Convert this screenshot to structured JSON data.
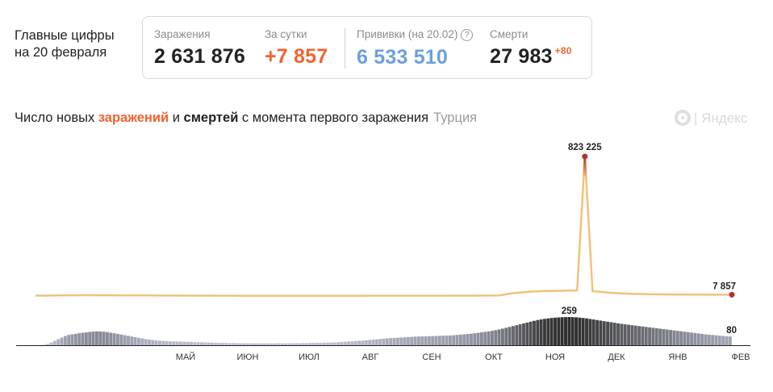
{
  "headline": {
    "line1": "Главные цифры",
    "line2": "на 20 февраля"
  },
  "stats": {
    "infections": {
      "label": "Заражения",
      "value": "2 631 876"
    },
    "daily": {
      "label": "За сутки",
      "value": "+7 857",
      "color": "#f2622e"
    },
    "vaccinations": {
      "label": "Прививки (на 20.02)",
      "value": "6 533 510",
      "color": "#6aa0de"
    },
    "deaths": {
      "label": "Смерти",
      "value": "27 983",
      "delta": "+80"
    }
  },
  "title": {
    "part1": "Число новых ",
    "infections_word": "заражений",
    "part2": " и ",
    "deaths_word": "смертей",
    "part3": " с момента первого заражения",
    "country": "Турция"
  },
  "logo": {
    "text": "| Яндекс",
    "icon": "yandex-logo-icon"
  },
  "chart_data": {
    "type": "line",
    "x_ticks": [
      "МАЙ",
      "ИЮН",
      "ИЮЛ",
      "АВГ",
      "СЕН",
      "ОКТ",
      "НОЯ",
      "ДЕК",
      "ЯНВ",
      "ФЕВ"
    ],
    "series": [
      {
        "name": "заражения",
        "color_start": "#f0c27a",
        "color_peak": "#b0322a",
        "peak_label": "823 225",
        "last_label": "7 857",
        "values": [
          2500,
          2600,
          3000,
          3800,
          4200,
          4400,
          4600,
          4500,
          4300,
          4100,
          3900,
          3800,
          3700,
          3600,
          3500,
          3300,
          3100,
          2900,
          2800,
          2600,
          2400,
          2200,
          2100,
          1900,
          1700,
          1600,
          1500,
          1400,
          1300,
          1200,
          1100,
          1000,
          950,
          980,
          1050,
          1100,
          1150,
          1200,
          1250,
          1300,
          1350,
          1400,
          1450,
          1500,
          1550,
          1600,
          1650,
          1700,
          1750,
          1800,
          1850,
          1900,
          1950,
          2000,
          2100,
          2200,
          2400,
          2600,
          2900,
          3200,
          3600,
          12000,
          18000,
          22000,
          26000,
          28000,
          29000,
          30000,
          31000,
          32000,
          33000,
          823225,
          28000,
          25000,
          20000,
          17000,
          15000,
          13000,
          12000,
          11000,
          10000,
          9500,
          9200,
          9000,
          8800,
          8600,
          8400,
          8200,
          8000,
          7900,
          7857
        ]
      },
      {
        "name": "смерти",
        "color_start": "#c0c4d6",
        "color_peak": "#2e2e2e",
        "peak_label": "259",
        "last_label": "80",
        "values": [
          1,
          2,
          5,
          12,
          25,
          40,
          55,
          70,
          85,
          95,
          100,
          105,
          110,
          115,
          118,
          122,
          125,
          127,
          126,
          124,
          120,
          115,
          110,
          104,
          98,
          92,
          86,
          80,
          74,
          68,
          62,
          56,
          52,
          48,
          45,
          42,
          40,
          38,
          36,
          35,
          34,
          33,
          32,
          31,
          30,
          29,
          28,
          27,
          26,
          25,
          24,
          23,
          22,
          22,
          21,
          20,
          20,
          19,
          19,
          18,
          18,
          18,
          17,
          17,
          17,
          17,
          17,
          17,
          17,
          18,
          18,
          18,
          18,
          19,
          19,
          19,
          20,
          20,
          21,
          21,
          22,
          22,
          23,
          24,
          25,
          26,
          28,
          30,
          32,
          34,
          36,
          38,
          40,
          42,
          45,
          48,
          51,
          54,
          57,
          60,
          63,
          65,
          67,
          69,
          71,
          73,
          75,
          77,
          79,
          80,
          81,
          82,
          83,
          84,
          85,
          86,
          87,
          88,
          90,
          92,
          95,
          98,
          100,
          103,
          106,
          110,
          114,
          118,
          122,
          127,
          132,
          138,
          145,
          152,
          160,
          168,
          176,
          184,
          192,
          200,
          208,
          216,
          224,
          231,
          237,
          242,
          246,
          250,
          253,
          255,
          257,
          258,
          259,
          258,
          256,
          253,
          250,
          246,
          241,
          236,
          231,
          226,
          221,
          216,
          211,
          206,
          201,
          196,
          192,
          188,
          184,
          180,
          176,
          172,
          168,
          164,
          160,
          156,
          152,
          148,
          144,
          140,
          136,
          132,
          128,
          124,
          120,
          116,
          112,
          108,
          104,
          100,
          97,
          94,
          91,
          88,
          85,
          82,
          80
        ]
      }
    ]
  }
}
